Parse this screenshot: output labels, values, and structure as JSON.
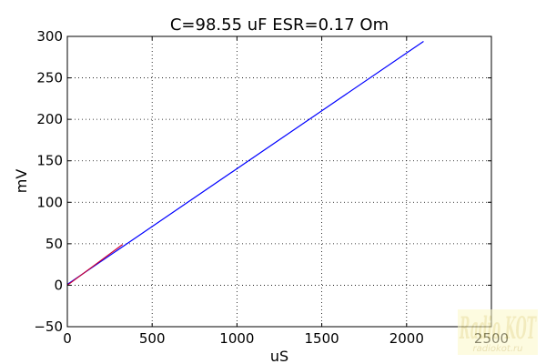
{
  "chart_data": {
    "type": "line",
    "title": "C=98.55 uF ESR=0.17 Om",
    "xlabel": "uS",
    "ylabel": "mV",
    "xlim": [
      0,
      2500
    ],
    "ylim": [
      -50,
      300
    ],
    "xticks": [
      0,
      500,
      1000,
      1500,
      2000,
      2500
    ],
    "yticks": [
      -50,
      0,
      50,
      100,
      150,
      200,
      250,
      300
    ],
    "xtick_labels": [
      "0",
      "500",
      "1000",
      "1500",
      "2000",
      "2500"
    ],
    "ytick_labels": [
      "−50",
      "0",
      "50",
      "100",
      "150",
      "200",
      "250",
      "300"
    ],
    "grid": true,
    "series": [
      {
        "color": "#0000ff",
        "x": [
          0,
          2100
        ],
        "y": [
          1,
          294
        ]
      },
      {
        "color": "#cc0033",
        "x": [
          0,
          325
        ],
        "y": [
          0,
          49
        ]
      }
    ]
  },
  "watermark": {
    "main": "Radio KOT",
    "sub": "radiokot.ru"
  }
}
